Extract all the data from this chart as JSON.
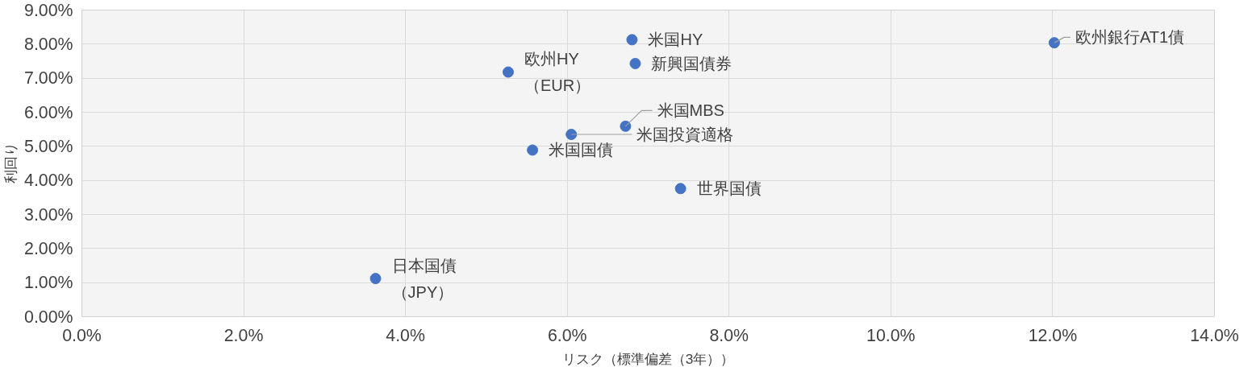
{
  "chart_data": {
    "type": "scatter",
    "xlabel": "リスク（標準偏差（3年））",
    "ylabel": "利回り",
    "x": [
      3.63,
      5.27,
      5.57,
      6.05,
      6.72,
      6.8,
      6.84,
      7.4,
      12.02
    ],
    "series": [
      {
        "color": "#4472c4",
        "values": [
          1.12,
          7.18,
          4.89,
          5.35,
          5.59,
          8.13,
          7.43,
          3.76,
          8.04
        ]
      }
    ],
    "annotations": [
      {
        "text": "日本国債（JPY）",
        "x": 3.63,
        "y": 1.12
      },
      {
        "text": "欧州HY（EUR）",
        "x": 5.27,
        "y": 7.18
      },
      {
        "text": "米国国債",
        "x": 5.57,
        "y": 4.89
      },
      {
        "text": "米国投資適格",
        "x": 6.05,
        "y": 5.35
      },
      {
        "text": "米国MBS",
        "x": 6.72,
        "y": 5.59
      },
      {
        "text": "米国HY",
        "x": 6.8,
        "y": 8.13
      },
      {
        "text": "新興国債券",
        "x": 6.84,
        "y": 7.43
      },
      {
        "text": "世界国債",
        "x": 7.4,
        "y": 3.76
      },
      {
        "text": "欧州銀行AT1債",
        "x": 12.02,
        "y": 8.04
      }
    ],
    "xlim": [
      0,
      14
    ],
    "ylim": [
      0,
      9
    ],
    "xticks": [
      {
        "value": 0,
        "label": "0.0%"
      },
      {
        "value": 2,
        "label": "2.0%"
      },
      {
        "value": 4,
        "label": "4.0%"
      },
      {
        "value": 6,
        "label": "6.0%"
      },
      {
        "value": 8,
        "label": "8.0%"
      },
      {
        "value": 10,
        "label": "10.0%"
      },
      {
        "value": 12,
        "label": "12.0%"
      },
      {
        "value": 14,
        "label": "14.0%"
      }
    ],
    "yticks": [
      {
        "value": 0,
        "label": "0.00%"
      },
      {
        "value": 1,
        "label": "1.00%"
      },
      {
        "value": 2,
        "label": "2.00%"
      },
      {
        "value": 3,
        "label": "3.00%"
      },
      {
        "value": 4,
        "label": "4.00%"
      },
      {
        "value": 5,
        "label": "5.00%"
      },
      {
        "value": 6,
        "label": "6.00%"
      },
      {
        "value": 7,
        "label": "7.00%"
      },
      {
        "value": 8,
        "label": "8.00%"
      },
      {
        "value": 9,
        "label": "9.00%"
      }
    ],
    "grid": true,
    "marker": "circle"
  }
}
